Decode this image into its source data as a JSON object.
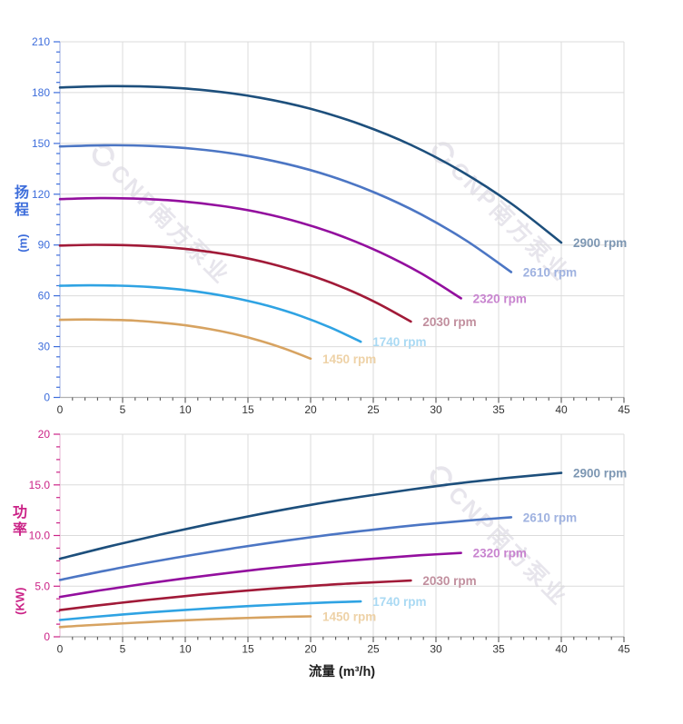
{
  "page": {
    "background": "#ffffff"
  },
  "watermark": {
    "text": "CNP南方泵业",
    "color": "#e7e5ec"
  },
  "labels": {
    "head_axis_chars": "扬程",
    "head_axis_unit": "(m)",
    "power_axis_chars": "功率",
    "power_axis_unit": "(KW)",
    "flow_axis": "流量 (m³/h)"
  },
  "colors": {
    "grid": "#dbdbdb",
    "x_axis_line": "#b0b0b0",
    "x_tick": "#555555",
    "x_tick_label": "#333333",
    "head_axis": "#3d6ddb",
    "head_axis_line": "#b9c5ea",
    "power_axis": "#cb2387",
    "power_axis_line": "#eec7de"
  },
  "chart_data": [
    {
      "type": "line",
      "panel": "head",
      "ylabel": "扬程 (m)",
      "xlabel": "流量 (m³/h)",
      "xlim": [
        0,
        45
      ],
      "ylim": [
        0,
        210
      ],
      "x_major": 5,
      "x_minor": 1,
      "y_major": 30,
      "y_minor": 6,
      "grid": true,
      "legend_position": "at-line-ends",
      "x_tick_labels": [
        "0",
        "5",
        "10",
        "15",
        "20",
        "25",
        "30",
        "35",
        "40",
        "45"
      ],
      "y_tick_labels": [
        "0",
        "30",
        "60",
        "90",
        "120",
        "150",
        "180",
        "210"
      ],
      "tick_color": "#3d6ddb",
      "axis_line_color": "#b9c5ea",
      "series": [
        {
          "name": "2900 rpm",
          "color": "#1d4f7c",
          "label_color": "#7d97b3",
          "x": [
            0,
            4,
            8,
            12,
            16,
            20,
            24,
            28,
            32,
            36,
            40
          ],
          "y": [
            183.0,
            183.8,
            183.3,
            181.1,
            176.9,
            170.4,
            161.2,
            149.1,
            133.6,
            114.5,
            91.4
          ]
        },
        {
          "name": "2610 rpm",
          "color": "#4c76c4",
          "label_color": "#9fb2e0",
          "x": [
            0,
            3.6,
            7.2,
            10.8,
            14.4,
            18,
            21.6,
            25.2,
            28.8,
            32.4,
            36
          ],
          "y": [
            148.2,
            148.9,
            148.5,
            146.7,
            143.3,
            138.0,
            130.6,
            120.7,
            108.2,
            92.7,
            74.0
          ]
        },
        {
          "name": "2320 rpm",
          "color": "#930f9e",
          "label_color": "#c884cf",
          "x": [
            0,
            3.2,
            6.4,
            9.6,
            12.8,
            16,
            19.2,
            22.4,
            25.6,
            28.8,
            32
          ],
          "y": [
            117.1,
            117.7,
            117.3,
            115.9,
            113.2,
            109.1,
            103.2,
            95.4,
            85.5,
            73.3,
            58.5
          ]
        },
        {
          "name": "2030 rpm",
          "color": "#a11a38",
          "label_color": "#c18f9e",
          "x": [
            0,
            2.8,
            5.6,
            8.4,
            11.2,
            14,
            16.8,
            19.6,
            22.4,
            25.2,
            28
          ],
          "y": [
            89.7,
            90.1,
            89.8,
            88.7,
            86.7,
            83.5,
            79.0,
            73.0,
            65.5,
            56.1,
            44.8
          ]
        },
        {
          "name": "1740 rpm",
          "color": "#2fa3e3",
          "label_color": "#a9d9f3",
          "x": [
            0,
            2.4,
            4.8,
            7.2,
            9.6,
            12,
            14.4,
            16.8,
            19.2,
            21.6,
            24
          ],
          "y": [
            65.9,
            66.2,
            66.0,
            65.2,
            63.7,
            61.3,
            58.0,
            53.7,
            48.1,
            41.2,
            32.9
          ]
        },
        {
          "name": "1450 rpm",
          "color": "#d7a361",
          "label_color": "#eed2a7",
          "x": [
            0,
            2,
            4,
            6,
            8,
            10,
            12,
            14,
            16,
            18,
            20
          ],
          "y": [
            45.8,
            46.0,
            45.8,
            45.3,
            44.2,
            42.6,
            40.3,
            37.3,
            33.4,
            28.6,
            22.9
          ]
        }
      ]
    },
    {
      "type": "line",
      "panel": "power",
      "ylabel": "功率 (KW)",
      "xlabel": "流量 (m³/h)",
      "xlim": [
        0,
        45
      ],
      "ylim": [
        0,
        20
      ],
      "x_major": 5,
      "x_minor": 1,
      "y_major": 5,
      "y_minor": 1.25,
      "grid": true,
      "legend_position": "at-line-ends",
      "x_tick_labels": [
        "0",
        "5",
        "10",
        "15",
        "20",
        "25",
        "30",
        "35",
        "40",
        "45"
      ],
      "y_tick_labels": [
        "0",
        "5.0",
        "10.0",
        "15.0",
        "20"
      ],
      "tick_color": "#cb2387",
      "axis_line_color": "#eec7de",
      "series": [
        {
          "name": "2900 rpm",
          "color": "#1d4f7c",
          "label_color": "#7d97b3",
          "x": [
            0,
            4,
            8,
            12,
            16,
            20,
            24,
            28,
            32,
            36,
            40
          ],
          "y": [
            7.7,
            8.94,
            10.09,
            11.15,
            12.13,
            13.02,
            13.82,
            14.54,
            15.18,
            15.72,
            16.18
          ]
        },
        {
          "name": "2610 rpm",
          "color": "#4c76c4",
          "label_color": "#9fb2e0",
          "x": [
            0,
            3.6,
            7.2,
            10.8,
            14.4,
            18,
            21.6,
            25.2,
            28.8,
            32.4,
            36
          ],
          "y": [
            5.61,
            6.52,
            7.36,
            8.13,
            8.84,
            9.49,
            10.08,
            10.6,
            11.07,
            11.46,
            11.8
          ]
        },
        {
          "name": "2320 rpm",
          "color": "#930f9e",
          "label_color": "#c884cf",
          "x": [
            0,
            3.2,
            6.4,
            9.6,
            12.8,
            16,
            19.2,
            22.4,
            25.6,
            28.8,
            32
          ],
          "y": [
            3.94,
            4.58,
            5.17,
            5.71,
            6.21,
            6.67,
            7.08,
            7.44,
            7.77,
            8.05,
            8.28
          ]
        },
        {
          "name": "2030 rpm",
          "color": "#a11a38",
          "label_color": "#c18f9e",
          "x": [
            0,
            2.8,
            5.6,
            8.4,
            11.2,
            14,
            16.8,
            19.6,
            22.4,
            25.2,
            28
          ],
          "y": [
            2.64,
            3.07,
            3.46,
            3.82,
            4.16,
            4.47,
            4.74,
            4.99,
            5.21,
            5.39,
            5.55
          ]
        },
        {
          "name": "1740 rpm",
          "color": "#2fa3e3",
          "label_color": "#a9d9f3",
          "x": [
            0,
            2.4,
            4.8,
            7.2,
            9.6,
            12,
            14.4,
            16.8,
            19.2,
            21.6,
            24
          ],
          "y": [
            1.66,
            1.93,
            2.18,
            2.41,
            2.62,
            2.81,
            2.99,
            3.14,
            3.28,
            3.4,
            3.49
          ]
        },
        {
          "name": "1450 rpm",
          "color": "#d7a361",
          "label_color": "#eed2a7",
          "x": [
            0,
            2,
            4,
            6,
            8,
            10,
            12,
            14,
            16,
            18,
            20
          ],
          "y": [
            0.96,
            1.12,
            1.26,
            1.39,
            1.52,
            1.63,
            1.73,
            1.82,
            1.9,
            1.97,
            2.02
          ]
        }
      ]
    }
  ]
}
